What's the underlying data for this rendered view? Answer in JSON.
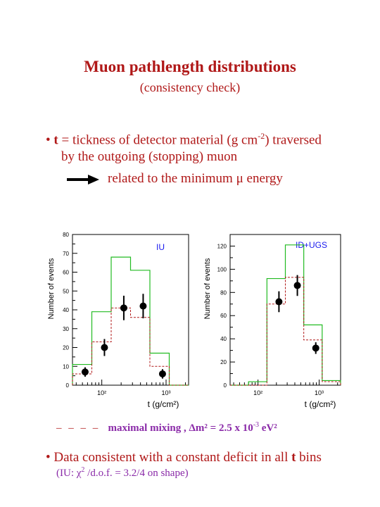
{
  "title": "Muon pathlength distributions",
  "subtitle": "(consistency check)",
  "bullet1": {
    "prefix": "t",
    "line1": "= tickness of detector material (g cm",
    "sup": "-2",
    "line1_end": ") traversed",
    "line2": "by the outgoing (stopping) muon"
  },
  "arrow_text": "related to the minimum μ energy",
  "legend": {
    "dash": "– – – –",
    "text": "maximal mixing ,",
    "formula": "Δm² = 2.5 x 10",
    "exp": "-3",
    "unit": "eV²"
  },
  "bullet2": {
    "pre": "Data consistent with a constant deficit in all",
    "bold": "t",
    "post": "bins"
  },
  "bullet3": {
    "pre": "(IU: χ",
    "sup": "2",
    "post": "/d.o.f. = 3.2/4 on shape)"
  },
  "colors": {
    "title": "#b01818",
    "mc": "#22bb22",
    "osc": "#b01818",
    "purple": "#8a2aa8",
    "label_blue": "#1a1aee"
  },
  "chart_data": [
    {
      "type": "histogram",
      "label": "IU",
      "ylabel": "Number of events",
      "xlabel": "t (g/cm²)",
      "x_scale": "log",
      "x_tick_labels": [
        "10²",
        "10³"
      ],
      "ylim": [
        0,
        80
      ],
      "y_ticks": [
        0,
        10,
        20,
        30,
        40,
        50,
        60,
        70,
        80
      ],
      "bin_edges": [
        35,
        70,
        140,
        280,
        560,
        1120,
        2240
      ],
      "no_osc": [
        11,
        39,
        68,
        61,
        17,
        0
      ],
      "osc": [
        6,
        23,
        41,
        36,
        10,
        0
      ],
      "data_x": [
        55,
        110,
        220,
        440,
        880
      ],
      "data_y": [
        7,
        20,
        41,
        42,
        6
      ],
      "data_err": [
        2.5,
        4.5,
        6.5,
        6.5,
        2.5
      ]
    },
    {
      "type": "histogram",
      "label": "ID+UGS",
      "ylabel": "Number of events",
      "xlabel": "t (g/cm²)",
      "x_scale": "log",
      "x_tick_labels": [
        "10²",
        "10³"
      ],
      "ylim": [
        0,
        130
      ],
      "y_ticks": [
        0,
        20,
        40,
        60,
        80,
        100,
        120
      ],
      "bin_edges": [
        35,
        70,
        140,
        280,
        560,
        1120,
        2240
      ],
      "no_osc": [
        0,
        3,
        92,
        121,
        52,
        4
      ],
      "osc": [
        0,
        0,
        70,
        93,
        39,
        3
      ],
      "data_x": [
        55,
        110,
        220,
        440,
        880
      ],
      "data_y": [
        0,
        0,
        72,
        86,
        32
      ],
      "data_err": [
        0,
        0,
        9,
        9,
        5
      ]
    }
  ]
}
